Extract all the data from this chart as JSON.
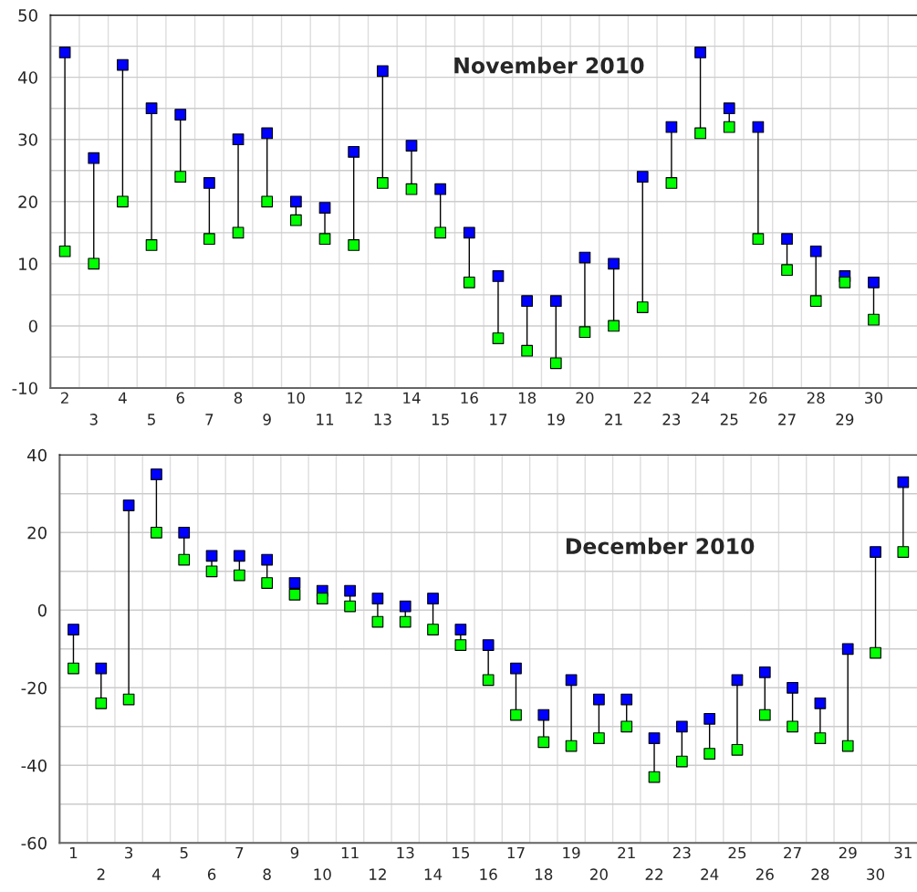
{
  "chart_data": [
    {
      "type": "scatter",
      "title": "November 2010",
      "marker": "square",
      "grid": true,
      "legend": false,
      "categories": [
        "2",
        "3",
        "4",
        "5",
        "6",
        "7",
        "8",
        "9",
        "10",
        "11",
        "12",
        "13",
        "14",
        "15",
        "16",
        "17",
        "18",
        "19",
        "20",
        "21",
        "22",
        "23",
        "24",
        "25",
        "26",
        "27",
        "28",
        "29",
        "30",
        null
      ],
      "ylim": [
        -10,
        50
      ],
      "yticks": [
        -10,
        {
          "value": -5,
          "label": null
        },
        0,
        {
          "value": 5,
          "label": null
        },
        10,
        {
          "value": 15,
          "label": null
        },
        20,
        {
          "value": 25,
          "label": null
        },
        30,
        {
          "value": 35,
          "label": null
        },
        40,
        {
          "value": 45,
          "label": null
        },
        50
      ],
      "series": [
        {
          "color": "#0000ff",
          "values": [
            44,
            27,
            42,
            35,
            34,
            23,
            30,
            31,
            20,
            19,
            28,
            41,
            29,
            22,
            15,
            8,
            4,
            4,
            11,
            10,
            24,
            32,
            44,
            35,
            32,
            14,
            12,
            8,
            7,
            null
          ]
        },
        {
          "color": "#00ff00",
          "values": [
            12,
            10,
            20,
            13,
            24,
            14,
            15,
            20,
            17,
            14,
            13,
            23,
            22,
            15,
            7,
            -2,
            -4,
            -6,
            -1,
            0,
            3,
            23,
            31,
            32,
            14,
            9,
            4,
            7,
            1,
            null
          ]
        }
      ]
    },
    {
      "type": "scatter",
      "title": "December 2010",
      "marker": "square",
      "grid": true,
      "legend": false,
      "categories": [
        "1",
        "2",
        "3",
        "4",
        "5",
        "6",
        "7",
        "8",
        "9",
        "10",
        "11",
        "12",
        "13",
        "14",
        "15",
        "16",
        "17",
        "18",
        "19",
        "20",
        "21",
        "22",
        "23",
        "24",
        "25",
        "26",
        "27",
        "28",
        "29",
        "30",
        "31"
      ],
      "ylim": [
        -60,
        40
      ],
      "yticks": [
        -60,
        {
          "value": -50,
          "label": null
        },
        -40,
        {
          "value": -30,
          "label": null
        },
        -20,
        {
          "value": -10,
          "label": null
        },
        0,
        {
          "value": 10,
          "label": null
        },
        20,
        {
          "value": 30,
          "label": null
        },
        40
      ],
      "series": [
        {
          "color": "#0000ff",
          "values": [
            -5,
            -15,
            27,
            35,
            20,
            14,
            14,
            13,
            7,
            5,
            5,
            3,
            1,
            3,
            -5,
            -9,
            -15,
            -27,
            -18,
            -23,
            -23,
            -33,
            -30,
            -28,
            -18,
            -16,
            -20,
            -24,
            -10,
            15,
            33
          ]
        },
        {
          "color": "#00ff00",
          "values": [
            -15,
            -24,
            -23,
            20,
            13,
            10,
            9,
            7,
            4,
            3,
            1,
            -3,
            -3,
            -5,
            -9,
            -18,
            -27,
            -34,
            -35,
            -33,
            -30,
            -43,
            -39,
            -37,
            -36,
            -27,
            -30,
            -33,
            -35,
            -11,
            15
          ]
        }
      ]
    }
  ]
}
